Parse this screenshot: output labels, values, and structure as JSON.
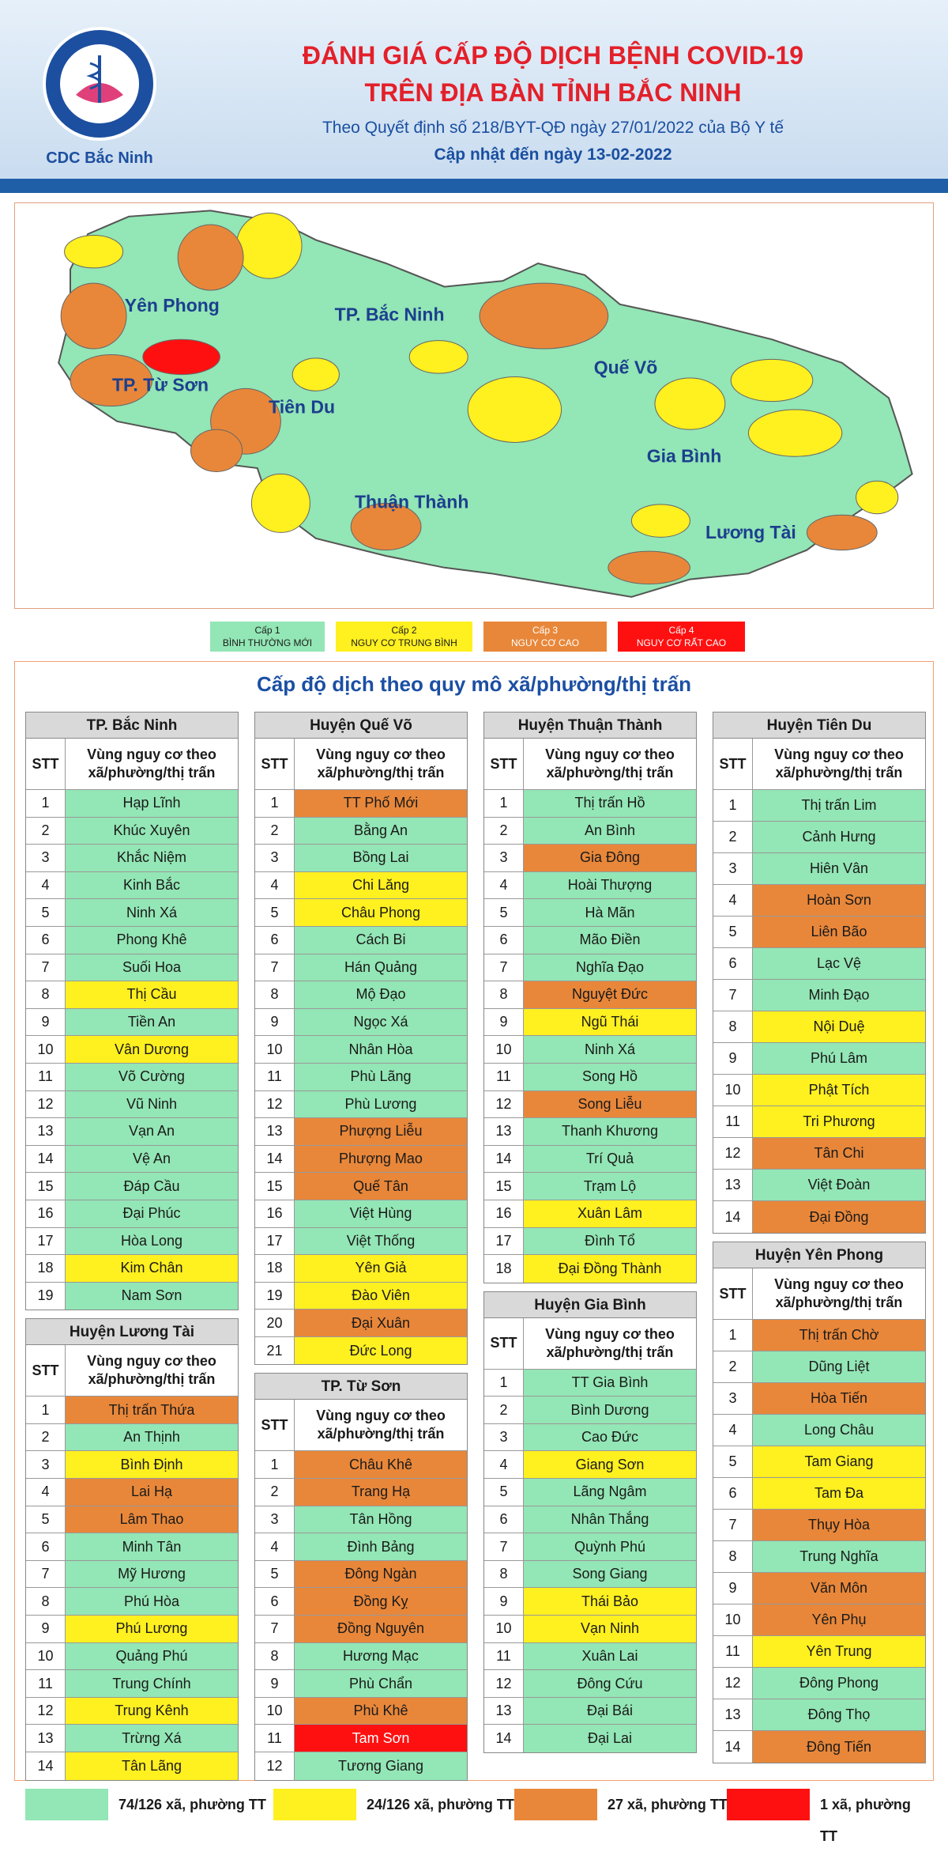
{
  "header": {
    "logo_text": "CDC Bắc Ninh",
    "title_line1": "ĐÁNH GIÁ CẤP ĐỘ DỊCH BỆNH COVID-19",
    "title_line2": "TRÊN ĐỊA BÀN TỈNH BẮC NINH",
    "subtitle": "Theo Quyết định số 218/BYT-QĐ ngày 27/01/2022 của Bộ Y tế",
    "updated": "Cập nhật đến ngày 13-02-2022"
  },
  "map": {
    "labels": [
      "Yên Phong",
      "TP. Bắc Ninh",
      "Quế Võ",
      "TP. Từ Sơn",
      "Tiên Du",
      "Gia Bình",
      "Thuận Thành",
      "Lương Tài"
    ]
  },
  "legend": [
    {
      "level": "Cấp 1",
      "label": "BÌNH THƯỜNG MỚI",
      "color": "#93e6b5"
    },
    {
      "level": "Cấp 2",
      "label": "NGUY CƠ TRUNG BÌNH",
      "color": "#fff01f"
    },
    {
      "level": "Cấp 3",
      "label": "NGUY CƠ CAO",
      "color": "#e8873a"
    },
    {
      "level": "Cấp 4",
      "label": "NGUY CƠ RẤT CAO",
      "color": "#ff1010"
    }
  ],
  "section_title": "Cấp độ dịch theo quy mô xã/phường/thị trấn",
  "table_header": {
    "stt": "STT",
    "area": "Vùng nguy cơ theo xã/phường/thị trấn"
  },
  "columns": [
    [
      {
        "title": "TP. Bắc Ninh",
        "rows": [
          [
            1,
            "Hạp Lĩnh",
            1
          ],
          [
            2,
            "Khúc Xuyên",
            1
          ],
          [
            3,
            "Khắc Niệm",
            1
          ],
          [
            4,
            "Kinh Bắc",
            1
          ],
          [
            5,
            "Ninh Xá",
            1
          ],
          [
            6,
            "Phong Khê",
            1
          ],
          [
            7,
            "Suối Hoa",
            1
          ],
          [
            8,
            "Thị Cầu",
            2
          ],
          [
            9,
            "Tiền An",
            1
          ],
          [
            10,
            "Vân Dương",
            2
          ],
          [
            11,
            "Võ Cường",
            1
          ],
          [
            12,
            "Vũ Ninh",
            1
          ],
          [
            13,
            "Vạn An",
            1
          ],
          [
            14,
            "Vệ An",
            1
          ],
          [
            15,
            "Đáp Cầu",
            1
          ],
          [
            16,
            "Đại Phúc",
            1
          ],
          [
            17,
            "Hòa Long",
            1
          ],
          [
            18,
            "Kim Chân",
            2
          ],
          [
            19,
            "Nam Sơn",
            1
          ]
        ]
      },
      {
        "title": "Huyện Lương Tài",
        "rows": [
          [
            1,
            "Thị trấn Thứa",
            3
          ],
          [
            2,
            "An Thịnh",
            1
          ],
          [
            3,
            "Bình Định",
            2
          ],
          [
            4,
            "Lai Hạ",
            3
          ],
          [
            5,
            "Lâm Thao",
            3
          ],
          [
            6,
            "Minh Tân",
            1
          ],
          [
            7,
            "Mỹ Hương",
            1
          ],
          [
            8,
            "Phú Hòa",
            1
          ],
          [
            9,
            "Phú Lương",
            2
          ],
          [
            10,
            "Quảng Phú",
            1
          ],
          [
            11,
            "Trung Chính",
            1
          ],
          [
            12,
            "Trung Kênh",
            2
          ],
          [
            13,
            "Trừng Xá",
            1
          ],
          [
            14,
            "Tân Lãng",
            2
          ]
        ]
      }
    ],
    [
      {
        "title": "Huyện Quế Võ",
        "rows": [
          [
            1,
            "TT Phố Mới",
            3
          ],
          [
            2,
            "Bằng An",
            1
          ],
          [
            3,
            "Bồng Lai",
            1
          ],
          [
            4,
            "Chi Lăng",
            2
          ],
          [
            5,
            "Châu Phong",
            2
          ],
          [
            6,
            "Cách Bi",
            1
          ],
          [
            7,
            "Hán Quảng",
            1
          ],
          [
            8,
            "Mộ Đạo",
            1
          ],
          [
            9,
            "Ngọc Xá",
            1
          ],
          [
            10,
            "Nhân Hòa",
            1
          ],
          [
            11,
            "Phù Lãng",
            1
          ],
          [
            12,
            "Phù Lương",
            1
          ],
          [
            13,
            "Phượng Liễu",
            3
          ],
          [
            14,
            "Phượng Mao",
            3
          ],
          [
            15,
            "Quế Tân",
            3
          ],
          [
            16,
            "Việt Hùng",
            1
          ],
          [
            17,
            "Việt Thống",
            1
          ],
          [
            18,
            "Yên Giả",
            2
          ],
          [
            19,
            "Đào Viên",
            2
          ],
          [
            20,
            "Đại Xuân",
            3
          ],
          [
            21,
            "Đức Long",
            2
          ]
        ]
      },
      {
        "title": "TP. Từ Sơn",
        "rows": [
          [
            1,
            "Châu Khê",
            3
          ],
          [
            2,
            "Trang Hạ",
            3
          ],
          [
            3,
            "Tân Hồng",
            1
          ],
          [
            4,
            "Đình Bảng",
            1
          ],
          [
            5,
            "Đông Ngàn",
            3
          ],
          [
            6,
            "Đồng Kỵ",
            3
          ],
          [
            7,
            "Đồng Nguyên",
            3
          ],
          [
            8,
            "Hương Mạc",
            1
          ],
          [
            9,
            "Phù Chẩn",
            1
          ],
          [
            10,
            "Phù Khê",
            3
          ],
          [
            11,
            "Tam Sơn",
            4
          ],
          [
            12,
            "Tương Giang",
            1
          ]
        ]
      }
    ],
    [
      {
        "title": "Huyện Thuận Thành",
        "rows": [
          [
            1,
            "Thị trấn Hồ",
            1
          ],
          [
            2,
            "An Bình",
            1
          ],
          [
            3,
            "Gia Đông",
            3
          ],
          [
            4,
            "Hoài Thượng",
            1
          ],
          [
            5,
            "Hà Mãn",
            1
          ],
          [
            6,
            "Mão Điền",
            1
          ],
          [
            7,
            "Nghĩa Đạo",
            1
          ],
          [
            8,
            "Nguyệt Đức",
            3
          ],
          [
            9,
            "Ngũ Thái",
            2
          ],
          [
            10,
            "Ninh Xá",
            1
          ],
          [
            11,
            "Song Hồ",
            1
          ],
          [
            12,
            "Song Liễu",
            3
          ],
          [
            13,
            "Thanh Khương",
            1
          ],
          [
            14,
            "Trí Quả",
            1
          ],
          [
            15,
            "Trạm Lộ",
            1
          ],
          [
            16,
            "Xuân Lâm",
            2
          ],
          [
            17,
            "Đình Tổ",
            1
          ],
          [
            18,
            "Đại Đồng Thành",
            2
          ]
        ]
      },
      {
        "title": "Huyện Gia Bình",
        "rows": [
          [
            1,
            "TT Gia Bình",
            1
          ],
          [
            2,
            "Bình Dương",
            1
          ],
          [
            3,
            "Cao Đức",
            1
          ],
          [
            4,
            "Giang Sơn",
            2
          ],
          [
            5,
            "Lãng Ngâm",
            1
          ],
          [
            6,
            "Nhân Thắng",
            1
          ],
          [
            7,
            "Quỳnh Phú",
            1
          ],
          [
            8,
            "Song Giang",
            1
          ],
          [
            9,
            "Thái Bảo",
            2
          ],
          [
            10,
            "Vạn Ninh",
            2
          ],
          [
            11,
            "Xuân Lai",
            1
          ],
          [
            12,
            "Đông Cứu",
            1
          ],
          [
            13,
            "Đại Bái",
            1
          ],
          [
            14,
            "Đại Lai",
            1
          ]
        ]
      }
    ],
    [
      {
        "title": "Huyện Tiên Du",
        "rows": [
          [
            1,
            "Thị trấn Lim",
            1
          ],
          [
            2,
            "Cảnh Hưng",
            1
          ],
          [
            3,
            "Hiên Vân",
            1
          ],
          [
            4,
            "Hoàn Sơn",
            3
          ],
          [
            5,
            "Liên Bão",
            3
          ],
          [
            6,
            "Lạc Vệ",
            1
          ],
          [
            7,
            "Minh Đạo",
            1
          ],
          [
            8,
            "Nội Duệ",
            2
          ],
          [
            9,
            "Phú Lâm",
            1
          ],
          [
            10,
            "Phật Tích",
            2
          ],
          [
            11,
            "Tri Phương",
            2
          ],
          [
            12,
            "Tân Chi",
            3
          ],
          [
            13,
            "Việt Đoàn",
            1
          ],
          [
            14,
            "Đại Đồng",
            3
          ]
        ]
      },
      {
        "title": "Huyện Yên Phong",
        "rows": [
          [
            1,
            "Thị trấn Chờ",
            3
          ],
          [
            2,
            "Dũng Liệt",
            1
          ],
          [
            3,
            "Hòa Tiến",
            3
          ],
          [
            4,
            "Long Châu",
            1
          ],
          [
            5,
            "Tam Giang",
            2
          ],
          [
            6,
            "Tam Đa",
            2
          ],
          [
            7,
            "Thụy Hòa",
            3
          ],
          [
            8,
            "Trung Nghĩa",
            1
          ],
          [
            9,
            "Văn Môn",
            3
          ],
          [
            10,
            "Yên Phụ",
            3
          ],
          [
            11,
            "Yên Trung",
            2
          ],
          [
            12,
            "Đông Phong",
            1
          ],
          [
            13,
            "Đông Thọ",
            1
          ],
          [
            14,
            "Đông Tiến",
            3
          ]
        ]
      }
    ]
  ],
  "summary": [
    {
      "label": "74/126 xã, phường TT",
      "level": 1
    },
    {
      "label": "24/126 xã, phường TT",
      "level": 2
    },
    {
      "label": "27 xã, phường TT",
      "level": 3
    },
    {
      "label": "1 xã, phường TT",
      "level": 4
    }
  ]
}
